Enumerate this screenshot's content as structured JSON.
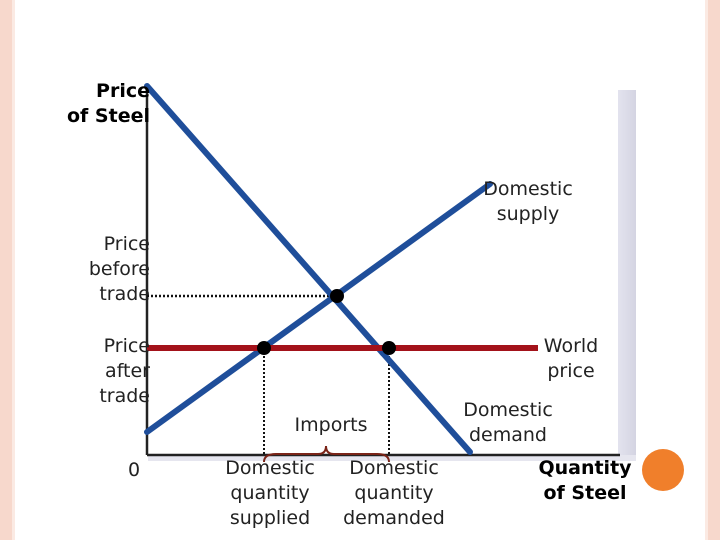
{
  "labels": {
    "price_axis_line1": "Price",
    "price_axis_line2": "of Steel",
    "quantity_axis_line1": "Quantity",
    "quantity_axis_line2": "of Steel",
    "origin": "0",
    "domestic_supply_line1": "Domestic",
    "domestic_supply_line2": "supply",
    "domestic_demand_line1": "Domestic",
    "domestic_demand_line2": "demand",
    "world_price_line1": "World",
    "world_price_line2": "price",
    "price_before_line1": "Price",
    "price_before_line2": "before",
    "price_before_line3": "trade",
    "price_after_line1": "Price",
    "price_after_line2": "after",
    "price_after_line3": "trade",
    "imports": "Imports",
    "qs_line1": "Domestic",
    "qs_line2": "quantity",
    "qs_line3": "supplied",
    "qd_line1": "Domestic",
    "qd_line2": "quantity",
    "qd_line3": "demanded"
  },
  "colors": {
    "supply_demand_lines": "#1f4e9a",
    "world_price_line": "#a3121a",
    "axes": "#222222",
    "brace": "#7a2418",
    "accent": "#f07f2b"
  }
}
